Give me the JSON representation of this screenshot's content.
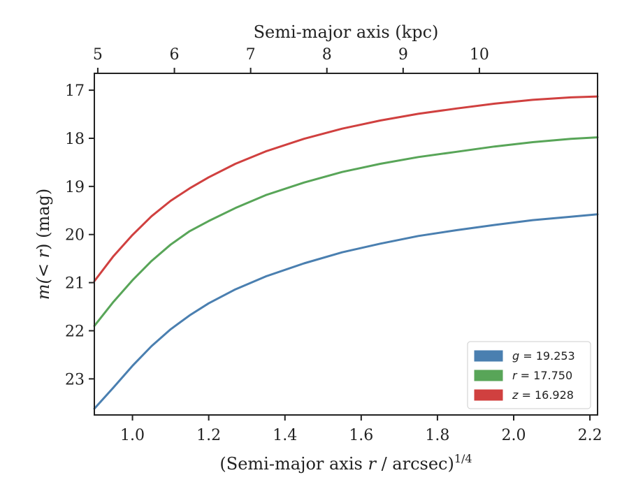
{
  "chart_data": {
    "type": "line",
    "title": "",
    "xlabel": "(Semi-major axis r / arcsec)",
    "xlabel_var": "r",
    "xlabel_pre": "(Semi-major axis ",
    "xlabel_post": " / arcsec)",
    "xlabel_sup": "1/4",
    "ylabel_pre": "m(< ",
    "ylabel_var": "r",
    "ylabel_post": ") (mag)",
    "top_xlabel": "Semi-major axis (kpc)",
    "xlim": [
      0.9,
      2.22
    ],
    "ylim": [
      23.75,
      16.65
    ],
    "y_inverted": true,
    "xticks": [
      1.0,
      1.2,
      1.4,
      1.6,
      1.8,
      2.0,
      2.2
    ],
    "xtick_labels": [
      "1.0",
      "1.2",
      "1.4",
      "1.6",
      "1.8",
      "2.0",
      "2.2"
    ],
    "yticks": [
      17,
      18,
      19,
      20,
      21,
      22,
      23
    ],
    "ytick_labels": [
      "17",
      "18",
      "19",
      "20",
      "21",
      "22",
      "23"
    ],
    "top_ticks_kpc": [
      5,
      6,
      7,
      8,
      9,
      10
    ],
    "top_tick_labels": [
      "5",
      "6",
      "7",
      "8",
      "9",
      "10"
    ],
    "top_ticks_x": [
      0.909,
      1.11,
      1.31,
      1.51,
      1.71,
      1.91
    ],
    "grid": false,
    "legend_position": "bottom-right",
    "series": [
      {
        "name": "g = 19.253",
        "legend_var": "g",
        "legend_value": "= 19.253",
        "color": "#4a7fb0",
        "x": [
          0.9,
          0.95,
          1.0,
          1.05,
          1.1,
          1.15,
          1.2,
          1.27,
          1.35,
          1.45,
          1.55,
          1.65,
          1.75,
          1.85,
          1.95,
          2.05,
          2.15,
          2.22
        ],
        "y": [
          23.62,
          23.18,
          22.73,
          22.32,
          21.97,
          21.68,
          21.43,
          21.14,
          20.87,
          20.6,
          20.37,
          20.19,
          20.03,
          19.91,
          19.8,
          19.7,
          19.63,
          19.58
        ]
      },
      {
        "name": "r = 17.750",
        "legend_var": "r",
        "legend_value": "= 17.750",
        "color": "#58a558",
        "x": [
          0.9,
          0.95,
          1.0,
          1.05,
          1.1,
          1.15,
          1.2,
          1.27,
          1.35,
          1.45,
          1.55,
          1.65,
          1.75,
          1.85,
          1.95,
          2.05,
          2.15,
          2.22
        ],
        "y": [
          21.9,
          21.4,
          20.95,
          20.55,
          20.21,
          19.93,
          19.72,
          19.45,
          19.18,
          18.92,
          18.7,
          18.53,
          18.39,
          18.28,
          18.17,
          18.08,
          18.01,
          17.98
        ]
      },
      {
        "name": "z = 16.928",
        "legend_var": "z",
        "legend_value": "= 16.928",
        "color": "#d0403f",
        "x": [
          0.9,
          0.95,
          1.0,
          1.05,
          1.1,
          1.15,
          1.2,
          1.27,
          1.35,
          1.45,
          1.55,
          1.65,
          1.75,
          1.85,
          1.95,
          2.05,
          2.15,
          2.22
        ],
        "y": [
          20.97,
          20.45,
          20.01,
          19.62,
          19.3,
          19.04,
          18.81,
          18.53,
          18.27,
          18.01,
          17.8,
          17.63,
          17.49,
          17.38,
          17.28,
          17.2,
          17.15,
          17.13
        ]
      }
    ]
  }
}
